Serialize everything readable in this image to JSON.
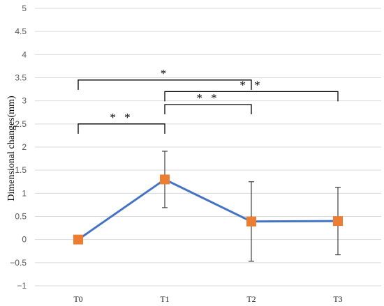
{
  "chart_data": {
    "type": "line",
    "title": "",
    "xlabel": "",
    "ylabel": "Dimensional changes(mm)",
    "ylim": [
      -1,
      5
    ],
    "yticks": [
      "−1",
      "−0.5",
      "0",
      "0.5",
      "1",
      "1.5",
      "2",
      "2.5",
      "3",
      "3.5",
      "4",
      "4.5",
      "5"
    ],
    "ytick_values": [
      -1,
      -0.5,
      0,
      0.5,
      1,
      1.5,
      2,
      2.5,
      3,
      3.5,
      4,
      4.5,
      5
    ],
    "grid": true,
    "categories": [
      "T0",
      "T1",
      "T2",
      "T3"
    ],
    "series": [
      {
        "values": [
          0,
          1.3,
          0.39,
          0.4
        ],
        "error": [
          0,
          0.61,
          0.86,
          0.73
        ],
        "line_color": "#4472c4",
        "marker_color": "#ed7d31",
        "marker": "square"
      }
    ],
    "significance": [
      {
        "from": "T0",
        "to": "T1",
        "level": 2.5,
        "label": "* *"
      },
      {
        "from": "T0",
        "to": "T2",
        "level": 3.45,
        "label": "*"
      },
      {
        "from": "T1",
        "to": "T2",
        "level": 2.92,
        "label": "* *"
      },
      {
        "from": "T1",
        "to": "T3",
        "level": 3.2,
        "label": "* *"
      }
    ]
  }
}
